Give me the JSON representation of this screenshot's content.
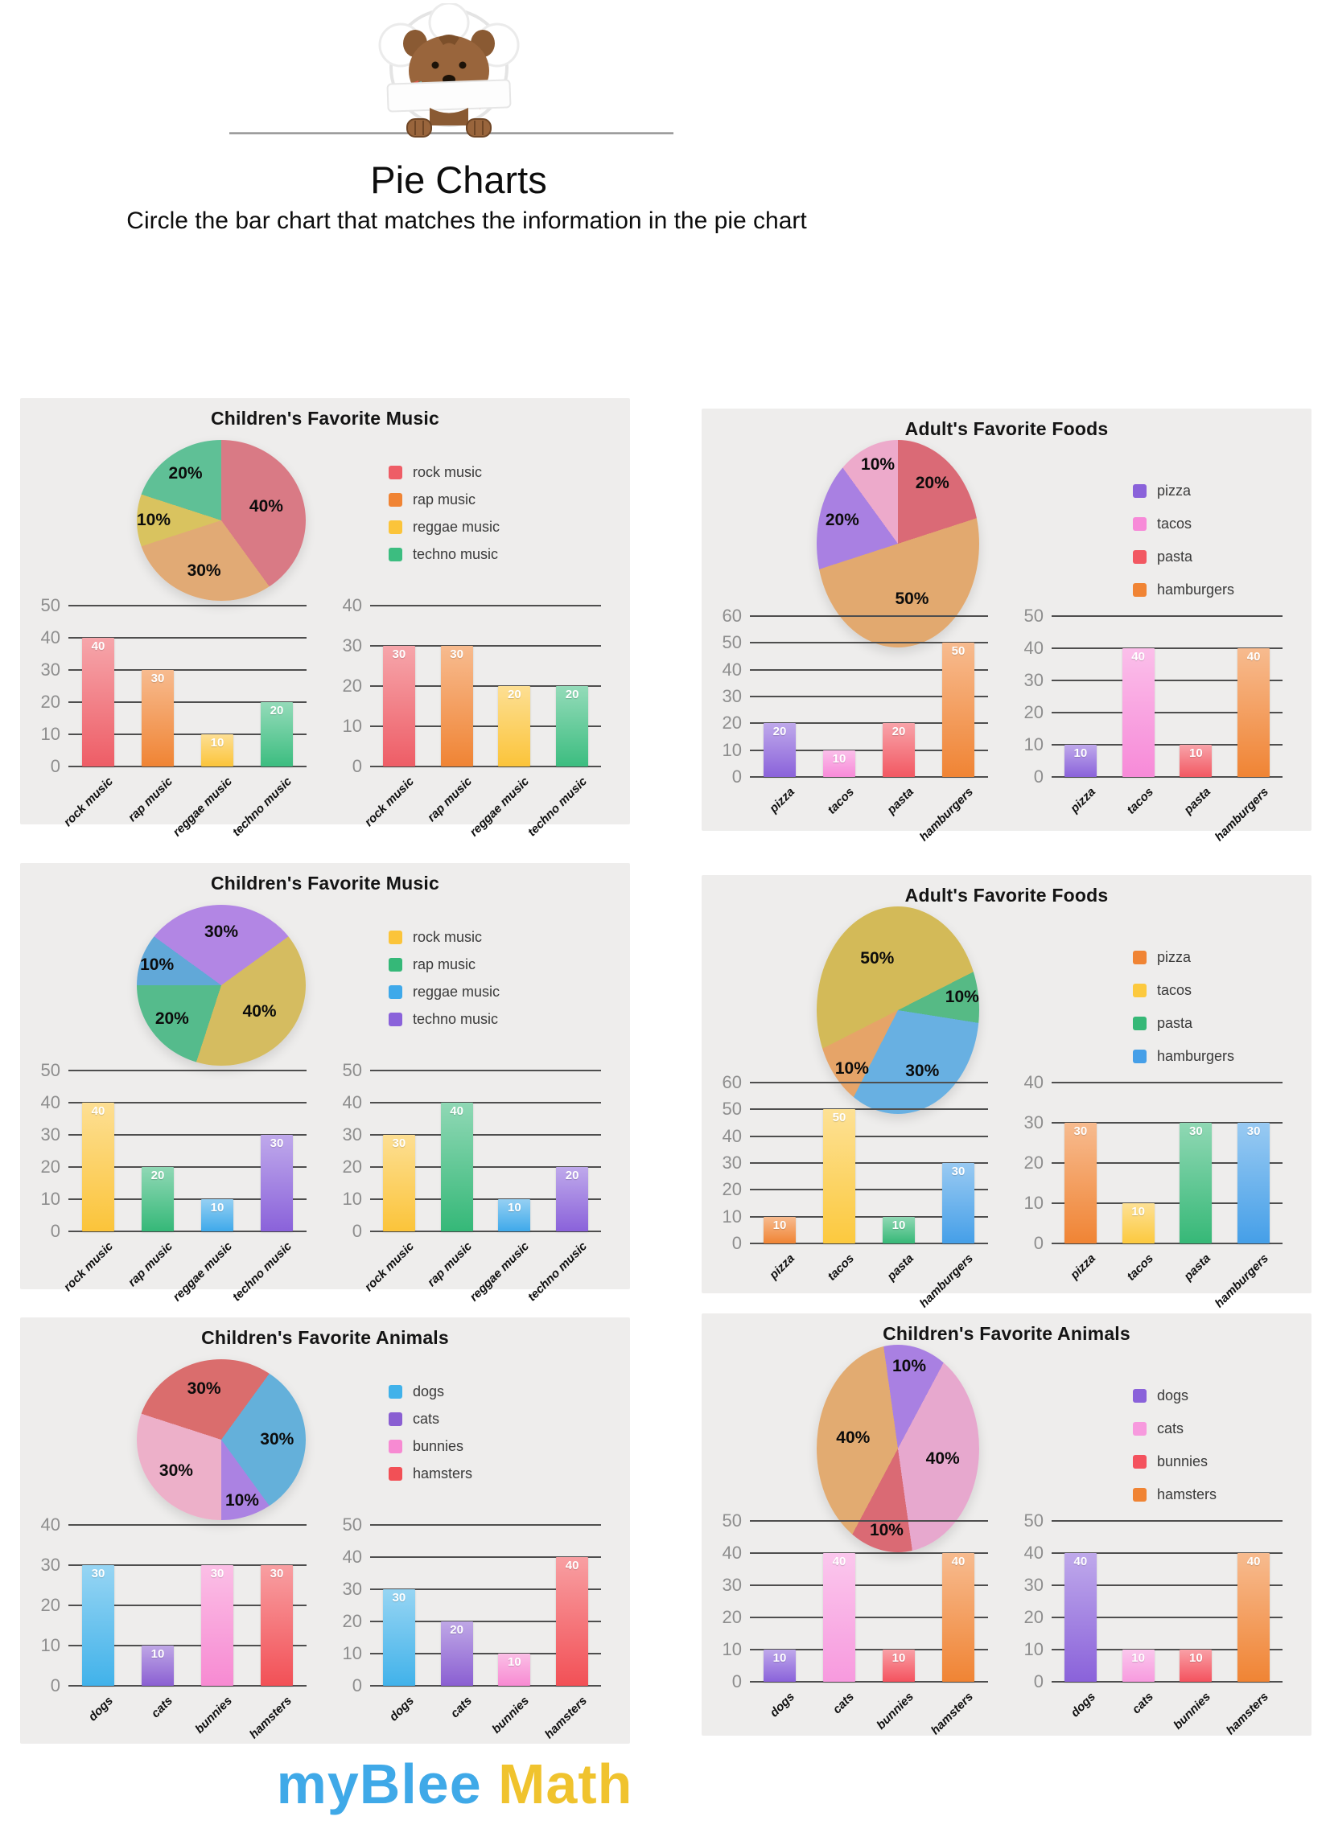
{
  "header": {
    "title": "Pie Charts",
    "subtitle": "Circle the bar chart that matches the information in the pie chart"
  },
  "footer": {
    "brand_blue": "myBlee ",
    "brand_yellow": "Math",
    "blue_color": "#3fa9e8",
    "yellow_color": "#f0c32e"
  },
  "panels": [
    {
      "title": "Children's Favorite Music",
      "categories": [
        "rock music",
        "rap music",
        "reggae music",
        "techno music"
      ],
      "pie": {
        "start_angle": 0,
        "slices": [
          {
            "label": "rock music",
            "pct": 40,
            "color": "#d97a85"
          },
          {
            "label": "rap music",
            "pct": 30,
            "color": "#e1aa75"
          },
          {
            "label": "reggae music",
            "pct": 10,
            "color": "#d9c35f"
          },
          {
            "label": "techno music",
            "pct": 20,
            "color": "#5fc096"
          }
        ]
      },
      "bar_colors": [
        "#ee5d66",
        "#f08434",
        "#fbc43a",
        "#3cbd80"
      ],
      "bar_charts": [
        {
          "y_max": 50,
          "y_ticks": [
            0,
            10,
            20,
            30,
            40,
            50
          ],
          "values": [
            40,
            30,
            10,
            20
          ]
        },
        {
          "y_max": 40,
          "y_ticks": [
            0,
            10,
            20,
            30,
            40
          ],
          "values": [
            30,
            30,
            20,
            20
          ]
        }
      ]
    },
    {
      "title": "Adult's Favorite Foods",
      "categories": [
        "pizza",
        "tacos",
        "pasta",
        "hamburgers"
      ],
      "pie": {
        "start_angle": 252,
        "slices": [
          {
            "label": "pizza",
            "pct": 20,
            "color": "#a980e2"
          },
          {
            "label": "tacos",
            "pct": 10,
            "color": "#edaacb"
          },
          {
            "label": "pasta",
            "pct": 20,
            "color": "#da6a76"
          },
          {
            "label": "hamburgers",
            "pct": 50,
            "color": "#e2a96f"
          }
        ]
      },
      "bar_colors": [
        "#8a62da",
        "#f78ad8",
        "#f25862",
        "#f08434"
      ],
      "bar_charts": [
        {
          "y_max": 60,
          "y_ticks": [
            0,
            10,
            20,
            30,
            40,
            50,
            60
          ],
          "values": [
            20,
            10,
            20,
            50
          ]
        },
        {
          "y_max": 50,
          "y_ticks": [
            0,
            10,
            20,
            30,
            40,
            50
          ],
          "values": [
            10,
            40,
            10,
            40
          ]
        }
      ]
    },
    {
      "title": "Children's Favorite Music",
      "categories": [
        "rock music",
        "rap music",
        "reggae music",
        "techno music"
      ],
      "pie": {
        "start_angle": 54,
        "slices": [
          {
            "label": "rock music",
            "pct": 40,
            "color": "#d5bc60"
          },
          {
            "label": "rap music",
            "pct": 20,
            "color": "#55bb8c"
          },
          {
            "label": "reggae music",
            "pct": 10,
            "color": "#61a8d8"
          },
          {
            "label": "techno music",
            "pct": 30,
            "color": "#b286e4"
          }
        ]
      },
      "bar_colors": [
        "#fbc43a",
        "#35b878",
        "#3fa9ea",
        "#8a62da"
      ],
      "bar_charts": [
        {
          "y_max": 50,
          "y_ticks": [
            0,
            10,
            20,
            30,
            40,
            50
          ],
          "values": [
            40,
            20,
            10,
            30
          ]
        },
        {
          "y_max": 50,
          "y_ticks": [
            0,
            10,
            20,
            30,
            40,
            50
          ],
          "values": [
            30,
            40,
            10,
            20
          ]
        }
      ]
    },
    {
      "title": "Adult's Favorite Foods",
      "categories": [
        "pizza",
        "tacos",
        "pasta",
        "hamburgers"
      ],
      "pie": {
        "start_angle": 207,
        "slices": [
          {
            "label": "pizza",
            "pct": 10,
            "color": "#e6a468"
          },
          {
            "label": "tacos",
            "pct": 50,
            "color": "#d3ba58"
          },
          {
            "label": "pasta",
            "pct": 10,
            "color": "#56ba85"
          },
          {
            "label": "hamburgers",
            "pct": 30,
            "color": "#68b0e2"
          }
        ]
      },
      "bar_colors": [
        "#f08434",
        "#fcc93e",
        "#36b877",
        "#459fe8"
      ],
      "bar_charts": [
        {
          "y_max": 60,
          "y_ticks": [
            0,
            10,
            20,
            30,
            40,
            50,
            60
          ],
          "values": [
            10,
            50,
            10,
            30
          ]
        },
        {
          "y_max": 40,
          "y_ticks": [
            0,
            10,
            20,
            30,
            40
          ],
          "values": [
            30,
            10,
            30,
            30
          ]
        }
      ]
    },
    {
      "title": "Children's Favorite Animals",
      "categories": [
        "dogs",
        "cats",
        "bunnies",
        "hamsters"
      ],
      "pie": {
        "start_angle": 36,
        "slices": [
          {
            "label": "dogs",
            "pct": 30,
            "color": "#64b0da"
          },
          {
            "label": "cats",
            "pct": 10,
            "color": "#ab82e2"
          },
          {
            "label": "bunnies",
            "pct": 30,
            "color": "#edb0c9"
          },
          {
            "label": "hamsters",
            "pct": 30,
            "color": "#da6d6d"
          }
        ]
      },
      "bar_colors": [
        "#41b2ea",
        "#8a5fd2",
        "#f78ad2",
        "#f25056"
      ],
      "bar_charts": [
        {
          "y_max": 40,
          "y_ticks": [
            0,
            10,
            20,
            30,
            40
          ],
          "values": [
            30,
            10,
            30,
            30
          ]
        },
        {
          "y_max": 50,
          "y_ticks": [
            0,
            10,
            20,
            30,
            40,
            50
          ],
          "values": [
            30,
            20,
            10,
            40
          ]
        }
      ]
    },
    {
      "title": "Children's Favorite Animals",
      "categories": [
        "dogs",
        "cats",
        "bunnies",
        "hamsters"
      ],
      "pie": {
        "start_angle": 352,
        "slices": [
          {
            "label": "dogs",
            "pct": 10,
            "color": "#a980e2"
          },
          {
            "label": "cats",
            "pct": 40,
            "color": "#e7a8ce"
          },
          {
            "label": "bunnies",
            "pct": 10,
            "color": "#da6a74"
          },
          {
            "label": "hamsters",
            "pct": 40,
            "color": "#e2ab71"
          }
        ]
      },
      "bar_colors": [
        "#8a62da",
        "#f79ade",
        "#f4525e",
        "#f08434"
      ],
      "bar_charts": [
        {
          "y_max": 50,
          "y_ticks": [
            0,
            10,
            20,
            30,
            40,
            50
          ],
          "values": [
            10,
            40,
            10,
            40
          ]
        },
        {
          "y_max": 50,
          "y_ticks": [
            0,
            10,
            20,
            30,
            40,
            50
          ],
          "values": [
            40,
            10,
            10,
            40
          ]
        }
      ]
    }
  ],
  "chart_data": [
    {
      "panel": 1,
      "pie": {
        "type": "pie",
        "title": "Children's Favorite Music",
        "labels": [
          "rock music",
          "rap music",
          "reggae music",
          "techno music"
        ],
        "values": [
          40,
          30,
          10,
          20
        ]
      },
      "bar_options": [
        {
          "type": "bar",
          "values": [
            40,
            30,
            10,
            20
          ],
          "ylim": [
            0,
            50
          ]
        },
        {
          "type": "bar",
          "values": [
            30,
            30,
            20,
            20
          ],
          "ylim": [
            0,
            40
          ]
        }
      ]
    },
    {
      "panel": 2,
      "pie": {
        "type": "pie",
        "title": "Adult's Favorite Foods",
        "labels": [
          "pizza",
          "tacos",
          "pasta",
          "hamburgers"
        ],
        "values": [
          20,
          10,
          20,
          50
        ]
      },
      "bar_options": [
        {
          "type": "bar",
          "values": [
            20,
            10,
            20,
            50
          ],
          "ylim": [
            0,
            60
          ]
        },
        {
          "type": "bar",
          "values": [
            10,
            40,
            10,
            40
          ],
          "ylim": [
            0,
            50
          ]
        }
      ]
    },
    {
      "panel": 3,
      "pie": {
        "type": "pie",
        "title": "Children's Favorite Music",
        "labels": [
          "rock music",
          "rap music",
          "reggae music",
          "techno music"
        ],
        "values": [
          40,
          20,
          10,
          30
        ]
      },
      "bar_options": [
        {
          "type": "bar",
          "values": [
            40,
            20,
            10,
            30
          ],
          "ylim": [
            0,
            50
          ]
        },
        {
          "type": "bar",
          "values": [
            30,
            40,
            10,
            20
          ],
          "ylim": [
            0,
            50
          ]
        }
      ]
    },
    {
      "panel": 4,
      "pie": {
        "type": "pie",
        "title": "Adult's Favorite Foods",
        "labels": [
          "pizza",
          "tacos",
          "pasta",
          "hamburgers"
        ],
        "values": [
          10,
          50,
          10,
          30
        ]
      },
      "bar_options": [
        {
          "type": "bar",
          "values": [
            10,
            50,
            10,
            30
          ],
          "ylim": [
            0,
            60
          ]
        },
        {
          "type": "bar",
          "values": [
            30,
            10,
            30,
            30
          ],
          "ylim": [
            0,
            40
          ]
        }
      ]
    },
    {
      "panel": 5,
      "pie": {
        "type": "pie",
        "title": "Children's Favorite Animals",
        "labels": [
          "dogs",
          "cats",
          "bunnies",
          "hamsters"
        ],
        "values": [
          30,
          10,
          30,
          30
        ]
      },
      "bar_options": [
        {
          "type": "bar",
          "values": [
            30,
            10,
            30,
            30
          ],
          "ylim": [
            0,
            40
          ]
        },
        {
          "type": "bar",
          "values": [
            30,
            20,
            10,
            40
          ],
          "ylim": [
            0,
            50
          ]
        }
      ]
    },
    {
      "panel": 6,
      "pie": {
        "type": "pie",
        "title": "Children's Favorite Animals",
        "labels": [
          "dogs",
          "cats",
          "bunnies",
          "hamsters"
        ],
        "values": [
          10,
          40,
          10,
          40
        ]
      },
      "bar_options": [
        {
          "type": "bar",
          "values": [
            10,
            40,
            10,
            40
          ],
          "ylim": [
            0,
            50
          ]
        },
        {
          "type": "bar",
          "values": [
            40,
            10,
            10,
            40
          ],
          "ylim": [
            0,
            50
          ]
        }
      ]
    }
  ]
}
